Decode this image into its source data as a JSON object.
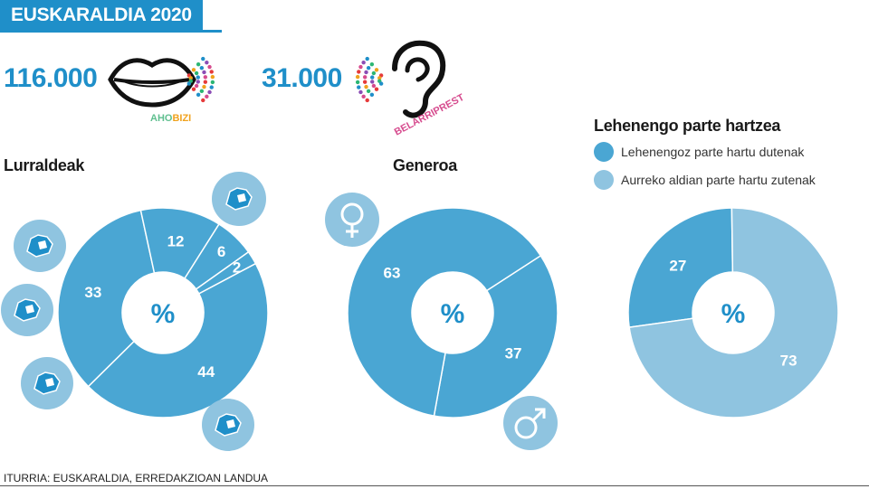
{
  "header": {
    "title": "EUSKARALDIA 2020"
  },
  "stats": {
    "ahobizi": {
      "value": "116.000",
      "brand_prefix": "AHO",
      "brand_suffix": "BIZI",
      "icon": "lips-icon"
    },
    "belarriprest": {
      "value": "31.000",
      "brand_prefix": "BELARRI",
      "brand_suffix": "PREST",
      "icon": "ear-icon"
    }
  },
  "center_label": "%",
  "colors": {
    "accent": "#1f8fc9",
    "ring": "#4aa6d3",
    "ring_light": "#8fc4e0",
    "white": "#ffffff"
  },
  "chart_data": [
    {
      "type": "pie",
      "title": "Lurraldeak",
      "values": [
        44,
        33,
        12,
        6,
        2
      ],
      "labels": [
        "44",
        "33",
        "12",
        "6",
        "2"
      ],
      "icons": [
        "territory-bizkaia-icon",
        "territory-gipuzkoa-icon",
        "territory-araba-icon",
        "territory-nafarroa-icon",
        "territory-iparraldea-icon"
      ]
    },
    {
      "type": "pie",
      "title": "Generoa",
      "values": [
        37,
        63
      ],
      "labels": [
        "37",
        "63"
      ],
      "icons": [
        "male-icon",
        "female-icon"
      ]
    },
    {
      "type": "pie",
      "title": "Lehenengo parte hartzea",
      "legend": [
        "Lehenengoz parte hartu dutenak",
        "Aurreko aldian parte hartu zutenak"
      ],
      "values": [
        27,
        73
      ],
      "labels": [
        "27",
        "73"
      ]
    }
  ],
  "source": "ITURRIA: EUSKARALDIA, ERREDAKZIOAN LANDUA"
}
